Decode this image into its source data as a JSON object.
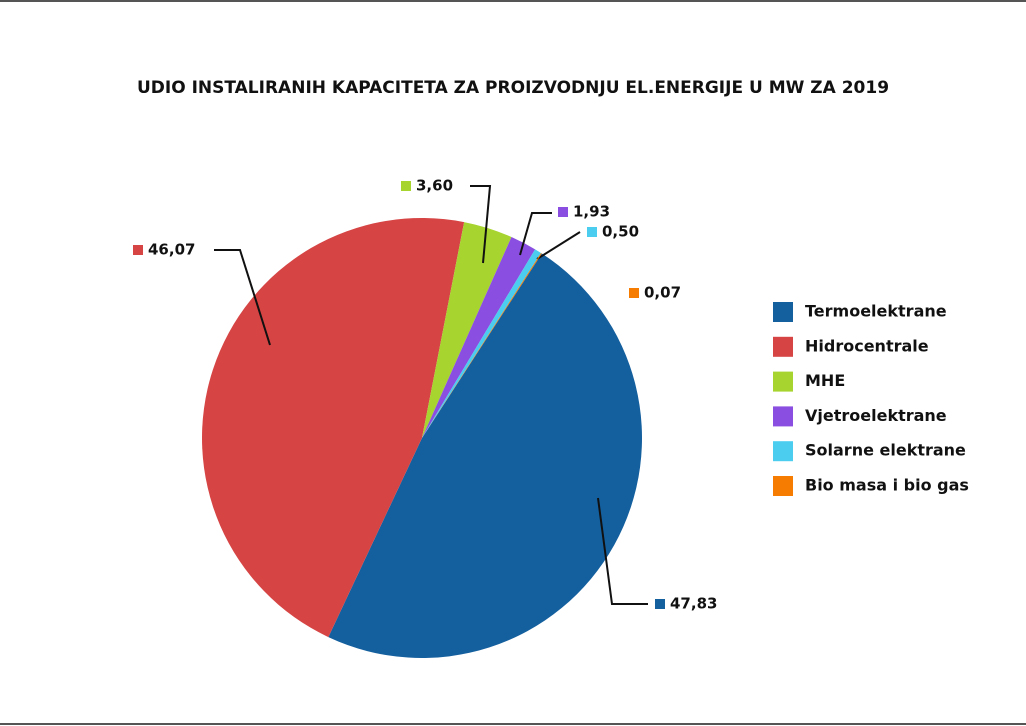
{
  "chart_data": {
    "type": "pie",
    "title": "UDIO INSTALIRANIH KAPACITETA ZA PROIZVODNJU EL.ENERGIJE U MW ZA 2019",
    "categories": [
      "Termoelektrane",
      "Hidrocentrale",
      "MHE",
      "Vjetroelektrane",
      "Solarne elektrane",
      "Bio masa i bio gas"
    ],
    "values": [
      47.83,
      46.07,
      3.6,
      1.93,
      0.5,
      0.07
    ],
    "value_labels": [
      "47,83",
      "46,07",
      "3,60",
      "1,93",
      "0,50",
      "0,07"
    ],
    "colors": [
      "#145f9e",
      "#d64444",
      "#a7d42f",
      "#8a4fe0",
      "#4bcdf0",
      "#f57c00"
    ],
    "legend": "right"
  }
}
